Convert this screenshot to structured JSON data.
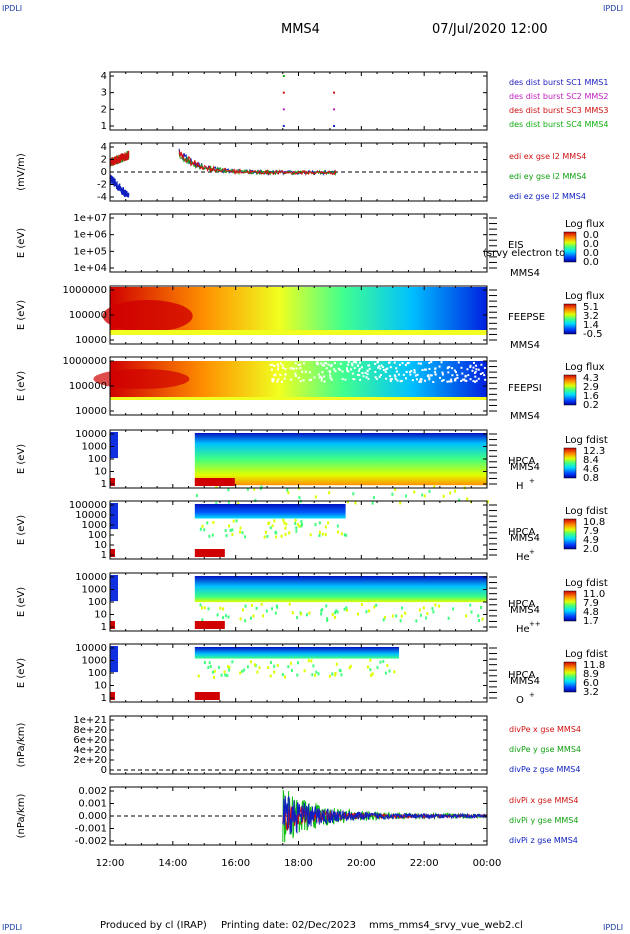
{
  "header": {
    "corner_tl": "IPDLI",
    "corner_tr": "IPDLI",
    "corner_bl": "IPDLI",
    "corner_br": "IPDLI",
    "spacecraft": "MMS4",
    "datetime": "07/Jul/2020 12:00"
  },
  "footer": {
    "produced_by": "Produced by cl (IRAP)",
    "printing_date": "Printing date: 02/Dec/2023",
    "script": "mms_mms4_srvy_vue_web2.cl"
  },
  "x_axis": {
    "ticks": [
      "12:00",
      "14:00",
      "16:00",
      "18:00",
      "20:00",
      "22:00",
      "00:00"
    ]
  },
  "panels": [
    {
      "id": "burst",
      "ylabel": "",
      "yticks": [
        "4",
        "3",
        "2",
        "1"
      ],
      "legend": [
        {
          "text": "des dist burst SC1 MMS1",
          "color": "#2020c0"
        },
        {
          "text": "des dist burst SC2 MMS2",
          "color": "#c020c0"
        },
        {
          "text": "des dist burst SC3 MMS3",
          "color": "#d01010"
        },
        {
          "text": "des dist burst SC4 MMS4",
          "color": "#10b010"
        }
      ]
    },
    {
      "id": "edi",
      "ylabel": "(mV/m)",
      "yticks": [
        "4",
        "2",
        "0",
        "-2",
        "-4"
      ],
      "legend": [
        {
          "text": "edi ex gse l2 MMS4",
          "color": "#d01010"
        },
        {
          "text": "edi ey gse l2 MMS4",
          "color": "#10a010"
        },
        {
          "text": "edi ez gse l2 MMS4",
          "color": "#1020c0"
        }
      ]
    },
    {
      "id": "eis",
      "ylabel": "E (eV)",
      "yticks": [
        "1e+07",
        "1e+06",
        "1e+05",
        "1e+04"
      ],
      "instrument": "EIS",
      "instrument_sub": "(srvy electron to",
      "sc": "MMS4",
      "cbar_title": "Log flux",
      "cbar_ticks": [
        "0.0",
        "0.0",
        "0.0",
        "0.0"
      ]
    },
    {
      "id": "feepse",
      "ylabel": "E (eV)",
      "yticks": [
        "1000000",
        "100000",
        "10000"
      ],
      "instrument": "FEEPSE",
      "sc": "MMS4",
      "cbar_title": "Log flux",
      "cbar_ticks": [
        "5.1",
        "3.2",
        "1.4",
        "-0.5"
      ]
    },
    {
      "id": "feepsi",
      "ylabel": "E (eV)",
      "yticks": [
        "1000000",
        "100000",
        "10000"
      ],
      "instrument": "FEEPSI",
      "sc": "MMS4",
      "cbar_title": "Log flux",
      "cbar_ticks": [
        "4.3",
        "2.9",
        "1.6",
        "0.2"
      ]
    },
    {
      "id": "hpca_h",
      "ylabel": "E (eV)",
      "yticks": [
        "10000",
        "1000",
        "100",
        "10",
        "1"
      ],
      "instrument": "HPCA",
      "sc": "MMS4",
      "species": "H",
      "species_sup": "+",
      "cbar_title": "Log fdist",
      "cbar_ticks": [
        "12.3",
        "8.4",
        "4.6",
        "0.8"
      ]
    },
    {
      "id": "hpca_he",
      "ylabel": "E (eV)",
      "yticks": [
        "100000",
        "10000",
        "1000",
        "100",
        "10",
        "1"
      ],
      "instrument": "HPCA",
      "sc": "MMS4",
      "species": "He",
      "species_sup": "+",
      "cbar_title": "Log fdist",
      "cbar_ticks": [
        "10.8",
        "7.9",
        "4.9",
        "2.0"
      ]
    },
    {
      "id": "hpca_hepp",
      "ylabel": "E (eV)",
      "yticks": [
        "10000",
        "1000",
        "100",
        "10",
        "1"
      ],
      "instrument": "HPCA",
      "sc": "MMS4",
      "species": "He",
      "species_sup": "++",
      "cbar_title": "Log fdist",
      "cbar_ticks": [
        "11.0",
        "7.9",
        "4.8",
        "1.7"
      ]
    },
    {
      "id": "hpca_o",
      "ylabel": "E (eV)",
      "yticks": [
        "10000",
        "1000",
        "100",
        "10",
        "1"
      ],
      "instrument": "HPCA",
      "sc": "MMS4",
      "species": "O",
      "species_sup": "+",
      "cbar_title": "Log fdist",
      "cbar_ticks": [
        "11.8",
        "8.9",
        "6.0",
        "3.2"
      ]
    },
    {
      "id": "divpe",
      "ylabel": "(nPa/km)",
      "yticks": [
        "1e+21",
        "8e+20",
        "6e+20",
        "4e+20",
        "2e+20",
        "0"
      ],
      "legend": [
        {
          "text": "divPe x gse MMS4",
          "color": "#d01010"
        },
        {
          "text": "divPe y gse MMS4",
          "color": "#10a010"
        },
        {
          "text": "divPe z gse MMS4",
          "color": "#1020c0"
        }
      ]
    },
    {
      "id": "divpi",
      "ylabel": "(nPa/km)",
      "yticks": [
        "0.002",
        "0.001",
        "0.000",
        "-0.001",
        "-0.002"
      ],
      "legend": [
        {
          "text": "divPi x gse MMS4",
          "color": "#d01010"
        },
        {
          "text": "divPi y gse MMS4",
          "color": "#10a010"
        },
        {
          "text": "divPi z gse MMS4",
          "color": "#1020c0"
        }
      ]
    }
  ],
  "chart_data": {
    "type": "line",
    "x_range": [
      "2020-07-07T12:00",
      "2020-07-08T00:00"
    ],
    "x_ticks": [
      "12:00",
      "14:00",
      "16:00",
      "18:00",
      "20:00",
      "22:00",
      "00:00"
    ],
    "burst_marks": {
      "mms1": {
        "y": 1,
        "t": [
          17.5,
          19.1
        ]
      },
      "mms2": {
        "y": 2,
        "t": [
          17.5,
          19.1
        ]
      },
      "mms3": {
        "y": 3,
        "t": [
          17.5,
          19.1
        ]
      },
      "mms4": {
        "y": 4,
        "t": [
          17.5
        ]
      }
    },
    "edi_ylim": [
      -4,
      4
    ],
    "edi_segments": [
      {
        "t0": 12.0,
        "t1": 12.6
      },
      {
        "t0": 14.2,
        "t1": 19.2
      }
    ],
    "divpe_ylim": [
      0,
      1e+21
    ],
    "divpi_ylim": [
      -0.002,
      0.002
    ],
    "divpi_start": 17.5
  }
}
